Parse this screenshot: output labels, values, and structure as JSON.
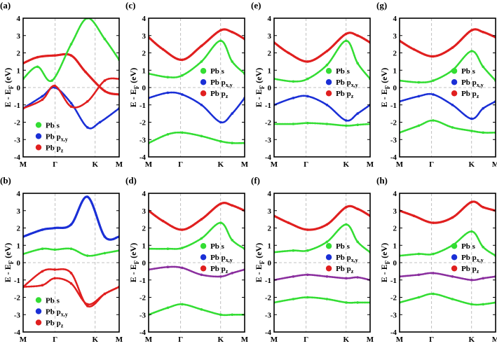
{
  "figure": {
    "y_axis_label_main": "E - E",
    "y_axis_label_sub": "F",
    "y_axis_label_unit": " (eV)",
    "x_tick_labels": [
      "M",
      "Γ",
      "K",
      "M"
    ],
    "y_tick_labels": [
      "-4",
      "-3",
      "-2",
      "-1",
      "0",
      "1",
      "2",
      "3",
      "4"
    ],
    "legend": [
      {
        "main": "Pb s",
        "sub": "",
        "color": "#33dd33"
      },
      {
        "main": "Pb p",
        "sub": "x,y",
        "color": "#1a2fd6"
      },
      {
        "main": "Pb p",
        "sub": "z",
        "color": "#e01f1f"
      }
    ]
  },
  "chart_data": [
    {
      "panel": "(a)",
      "type": "line",
      "xlabel": "",
      "ylabel": "E - EF (eV)",
      "ylim": [
        -4,
        4
      ],
      "categories": [
        "M",
        "Γ",
        "K",
        "M"
      ],
      "series": [
        {
          "name": "Pb pz",
          "color": "#e01f1f",
          "x": [
            0,
            0.15,
            0.33,
            0.5,
            0.65,
            0.85,
            1.0
          ],
          "values": [
            1.4,
            1.75,
            1.85,
            1.85,
            0.9,
            -0.2,
            -0.4
          ]
        },
        {
          "name": "Pb px,y",
          "color": "#1a2fd6",
          "x": [
            0,
            0.2,
            0.33,
            0.5,
            0.67,
            0.8,
            1.0
          ],
          "values": [
            -1.2,
            -0.5,
            0.0,
            -0.9,
            -2.3,
            -2.0,
            -1.2
          ]
        },
        {
          "name": "Pb s",
          "color": "#33dd33",
          "x": [
            0,
            0.15,
            0.3,
            0.5,
            0.67,
            0.85,
            1.0
          ],
          "values": [
            0.5,
            1.2,
            0.4,
            2.5,
            4.0,
            2.8,
            1.6
          ]
        },
        {
          "name": "Pb pz",
          "color": "#e01f1f",
          "x": [
            0,
            0.2,
            0.33,
            0.5,
            0.67,
            0.85,
            1.0
          ],
          "values": [
            -1.2,
            -0.7,
            0.1,
            -1.1,
            -0.8,
            0.4,
            0.5
          ]
        }
      ]
    },
    {
      "panel": "(b)",
      "type": "line",
      "xlabel": "",
      "ylabel": "E - EF (eV)",
      "ylim": [
        -4,
        4
      ],
      "categories": [
        "M",
        "Γ",
        "K",
        "M"
      ],
      "series": [
        {
          "name": "Pb px,y",
          "color": "#1a2fd6",
          "x": [
            0,
            0.2,
            0.33,
            0.5,
            0.67,
            0.85,
            1.0
          ],
          "values": [
            1.5,
            1.9,
            2.0,
            2.2,
            3.8,
            1.5,
            1.5
          ]
        },
        {
          "name": "Pb s",
          "color": "#33dd33",
          "x": [
            0,
            0.2,
            0.33,
            0.5,
            0.67,
            0.85,
            1.0
          ],
          "values": [
            0.5,
            0.8,
            0.75,
            0.8,
            0.4,
            0.55,
            0.7
          ]
        },
        {
          "name": "Pb pz",
          "color": "#e01f1f",
          "x": [
            0,
            0.2,
            0.33,
            0.5,
            0.67,
            0.85,
            1.0
          ],
          "values": [
            -1.4,
            -0.5,
            -0.4,
            -0.6,
            -2.5,
            -1.8,
            -1.4
          ]
        },
        {
          "name": "Pb pz",
          "color": "#e01f1f",
          "x": [
            0,
            0.2,
            0.33,
            0.5,
            0.67,
            0.85,
            1.0
          ],
          "values": [
            -1.4,
            -1.3,
            -0.9,
            -1.2,
            -2.4,
            -1.8,
            -1.4
          ]
        }
      ]
    },
    {
      "panel": "(c)",
      "type": "line",
      "xlabel": "",
      "ylabel": "E - EF (eV)",
      "ylim": [
        -4,
        4
      ],
      "categories": [
        "M",
        "Γ",
        "K",
        "M"
      ],
      "series": [
        {
          "name": "Pb pz",
          "color": "#e01f1f",
          "x": [
            0,
            0.15,
            0.35,
            0.55,
            0.75,
            0.87,
            1.0
          ],
          "values": [
            2.9,
            2.2,
            1.6,
            2.4,
            3.3,
            3.2,
            2.8
          ]
        },
        {
          "name": "Pb s",
          "color": "#33dd33",
          "x": [
            0,
            0.2,
            0.35,
            0.55,
            0.75,
            0.87,
            1.0
          ],
          "values": [
            0.8,
            0.6,
            0.7,
            1.5,
            2.7,
            1.5,
            0.8
          ]
        },
        {
          "name": "Pb px,y",
          "color": "#1a2fd6",
          "x": [
            0,
            0.2,
            0.35,
            0.55,
            0.75,
            0.87,
            1.0
          ],
          "values": [
            -0.6,
            -0.3,
            -0.4,
            -1.0,
            -2.0,
            -1.5,
            -0.6
          ]
        },
        {
          "name": "Pb s",
          "color": "#33dd33",
          "x": [
            0,
            0.2,
            0.35,
            0.55,
            0.75,
            0.87,
            1.0
          ],
          "values": [
            -3.2,
            -2.7,
            -2.6,
            -2.8,
            -3.1,
            -3.2,
            -3.2
          ]
        }
      ]
    },
    {
      "panel": "(d)",
      "type": "line",
      "xlabel": "",
      "ylabel": "E - EF (eV)",
      "ylim": [
        -4,
        4
      ],
      "categories": [
        "M",
        "Γ",
        "K",
        "M"
      ],
      "series": [
        {
          "name": "Pb pz",
          "color": "#e01f1f",
          "x": [
            0,
            0.15,
            0.35,
            0.55,
            0.75,
            0.87,
            1.0
          ],
          "values": [
            3.0,
            2.4,
            1.9,
            2.5,
            3.4,
            3.3,
            3.0
          ]
        },
        {
          "name": "Pb s",
          "color": "#33dd33",
          "x": [
            0,
            0.2,
            0.35,
            0.55,
            0.75,
            0.87,
            1.0
          ],
          "values": [
            0.8,
            0.8,
            0.85,
            1.4,
            2.3,
            1.3,
            0.8
          ]
        },
        {
          "name": "Pb pz",
          "color": "#8a2e9e",
          "x": [
            0,
            0.2,
            0.35,
            0.55,
            0.75,
            0.87,
            1.0
          ],
          "values": [
            -0.4,
            -0.25,
            -0.3,
            -0.7,
            -0.8,
            -0.6,
            -0.4
          ]
        },
        {
          "name": "Pb s",
          "color": "#33dd33",
          "x": [
            0,
            0.2,
            0.35,
            0.55,
            0.75,
            0.87,
            1.0
          ],
          "values": [
            -3.0,
            -2.6,
            -2.4,
            -2.7,
            -3.0,
            -3.0,
            -3.0
          ]
        }
      ]
    },
    {
      "panel": "(e)",
      "type": "line",
      "xlabel": "",
      "ylabel": "E - EF (eV)",
      "ylim": [
        -4,
        4
      ],
      "categories": [
        "M",
        "Γ",
        "K",
        "M"
      ],
      "series": [
        {
          "name": "Pb pz",
          "color": "#e01f1f",
          "x": [
            0,
            0.15,
            0.35,
            0.55,
            0.75,
            0.87,
            1.0
          ],
          "values": [
            2.6,
            2.0,
            1.5,
            2.1,
            3.1,
            3.0,
            2.6
          ]
        },
        {
          "name": "Pb s",
          "color": "#33dd33",
          "x": [
            0,
            0.2,
            0.35,
            0.55,
            0.75,
            0.87,
            1.0
          ],
          "values": [
            0.5,
            0.35,
            0.5,
            1.3,
            2.7,
            1.4,
            0.5
          ]
        },
        {
          "name": "Pb px,y",
          "color": "#1a2fd6",
          "x": [
            0,
            0.2,
            0.35,
            0.55,
            0.75,
            0.87,
            1.0
          ],
          "values": [
            -1.0,
            -0.6,
            -0.5,
            -1.0,
            -1.9,
            -1.5,
            -1.0
          ]
        },
        {
          "name": "Pb s",
          "color": "#33dd33",
          "x": [
            0,
            0.2,
            0.35,
            0.55,
            0.75,
            0.87,
            1.0
          ],
          "values": [
            -2.1,
            -2.1,
            -2.05,
            -2.1,
            -2.2,
            -2.15,
            -2.1
          ]
        }
      ]
    },
    {
      "panel": "(f)",
      "type": "line",
      "xlabel": "",
      "ylabel": "E - EF (eV)",
      "ylim": [
        -4,
        4
      ],
      "categories": [
        "M",
        "Γ",
        "K",
        "M"
      ],
      "series": [
        {
          "name": "Pb pz",
          "color": "#e01f1f",
          "x": [
            0,
            0.15,
            0.35,
            0.55,
            0.75,
            0.87,
            1.0
          ],
          "values": [
            2.7,
            2.3,
            1.9,
            2.2,
            3.2,
            3.1,
            2.7
          ]
        },
        {
          "name": "Pb s",
          "color": "#33dd33",
          "x": [
            0,
            0.2,
            0.35,
            0.55,
            0.75,
            0.87,
            1.0
          ],
          "values": [
            0.6,
            0.7,
            0.7,
            1.2,
            2.2,
            1.2,
            0.6
          ]
        },
        {
          "name": "Pb pz",
          "color": "#8a2e9e",
          "x": [
            0,
            0.2,
            0.35,
            0.55,
            0.75,
            0.87,
            1.0
          ],
          "values": [
            -1.0,
            -0.8,
            -0.7,
            -0.8,
            -0.9,
            -0.85,
            -1.0
          ]
        },
        {
          "name": "Pb s",
          "color": "#33dd33",
          "x": [
            0,
            0.2,
            0.35,
            0.55,
            0.75,
            0.87,
            1.0
          ],
          "values": [
            -2.3,
            -2.1,
            -2.0,
            -2.1,
            -2.3,
            -2.3,
            -2.3
          ]
        }
      ]
    },
    {
      "panel": "(g)",
      "type": "line",
      "xlabel": "",
      "ylabel": "E - EF (eV)",
      "ylim": [
        -4,
        4
      ],
      "categories": [
        "M",
        "Γ",
        "K",
        "M"
      ],
      "series": [
        {
          "name": "Pb pz",
          "color": "#e01f1f",
          "x": [
            0,
            0.15,
            0.35,
            0.55,
            0.75,
            0.87,
            1.0
          ],
          "values": [
            2.7,
            2.2,
            1.8,
            2.3,
            3.3,
            3.2,
            2.9
          ]
        },
        {
          "name": "Pb s",
          "color": "#33dd33",
          "x": [
            0,
            0.2,
            0.35,
            0.55,
            0.75,
            0.87,
            1.0
          ],
          "values": [
            0.4,
            0.3,
            0.4,
            1.0,
            2.1,
            1.2,
            0.4
          ]
        },
        {
          "name": "Pb px,y",
          "color": "#1a2fd6",
          "x": [
            0,
            0.2,
            0.35,
            0.55,
            0.75,
            0.87,
            1.0
          ],
          "values": [
            -0.8,
            -0.5,
            -0.4,
            -1.0,
            -1.8,
            -1.2,
            -0.8
          ]
        },
        {
          "name": "Pb s",
          "color": "#33dd33",
          "x": [
            0,
            0.2,
            0.35,
            0.55,
            0.75,
            0.87,
            1.0
          ],
          "values": [
            -2.6,
            -2.2,
            -1.9,
            -2.3,
            -2.5,
            -2.6,
            -2.6
          ]
        }
      ]
    },
    {
      "panel": "(h)",
      "type": "line",
      "xlabel": "",
      "ylabel": "E - EF (eV)",
      "ylim": [
        -4,
        4
      ],
      "categories": [
        "M",
        "Γ",
        "K",
        "M"
      ],
      "series": [
        {
          "name": "Pb pz",
          "color": "#e01f1f",
          "x": [
            0,
            0.15,
            0.35,
            0.55,
            0.75,
            0.87,
            1.0
          ],
          "values": [
            3.0,
            2.7,
            2.3,
            2.6,
            3.5,
            3.2,
            3.0
          ]
        },
        {
          "name": "Pb s",
          "color": "#33dd33",
          "x": [
            0,
            0.2,
            0.35,
            0.55,
            0.75,
            0.87,
            1.0
          ],
          "values": [
            0.4,
            0.5,
            0.5,
            1.0,
            1.8,
            0.9,
            0.4
          ]
        },
        {
          "name": "Pb pz",
          "color": "#8a2e9e",
          "x": [
            0,
            0.2,
            0.35,
            0.55,
            0.75,
            0.87,
            1.0
          ],
          "values": [
            -0.8,
            -0.7,
            -0.6,
            -0.8,
            -1.0,
            -0.9,
            -0.8
          ]
        },
        {
          "name": "Pb s",
          "color": "#33dd33",
          "x": [
            0,
            0.2,
            0.35,
            0.55,
            0.75,
            0.87,
            1.0
          ],
          "values": [
            -2.3,
            -2.0,
            -1.8,
            -2.1,
            -2.4,
            -2.4,
            -2.3
          ]
        }
      ]
    }
  ]
}
